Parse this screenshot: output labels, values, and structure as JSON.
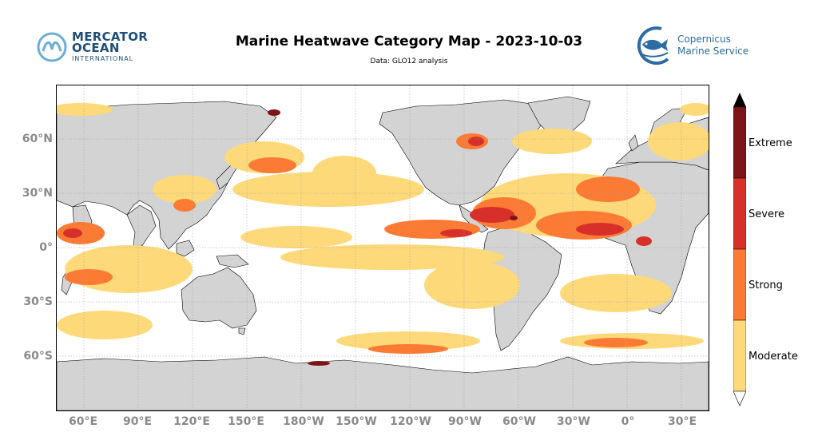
{
  "title": "Marine Heatwave Category Map - 2023-10-03",
  "subtitle": "Data: GLO12 analysis",
  "logos": {
    "mercator": {
      "line1": "MERCATOR",
      "line2": "OCEAN",
      "line3": "INTERNATIONAL"
    },
    "copernicus": {
      "line1": "Copernicus",
      "line2": "Marine Service"
    }
  },
  "map": {
    "lon_ticks": [
      "60°E",
      "90°E",
      "120°E",
      "150°E",
      "180°W",
      "150°W",
      "120°W",
      "90°W",
      "60°W",
      "30°W",
      "0°",
      "30°E"
    ],
    "lat_ticks": [
      "60°N",
      "30°N",
      "0°",
      "30°S",
      "60°S"
    ]
  },
  "colorbar": {
    "categories": [
      "Moderate",
      "Strong",
      "Severe",
      "Extreme"
    ],
    "colors": {
      "moderate": "#fdd97a",
      "strong": "#fc7b34",
      "severe": "#d7302a",
      "extreme": "#7f1418",
      "land": "#d3d3d3"
    }
  }
}
